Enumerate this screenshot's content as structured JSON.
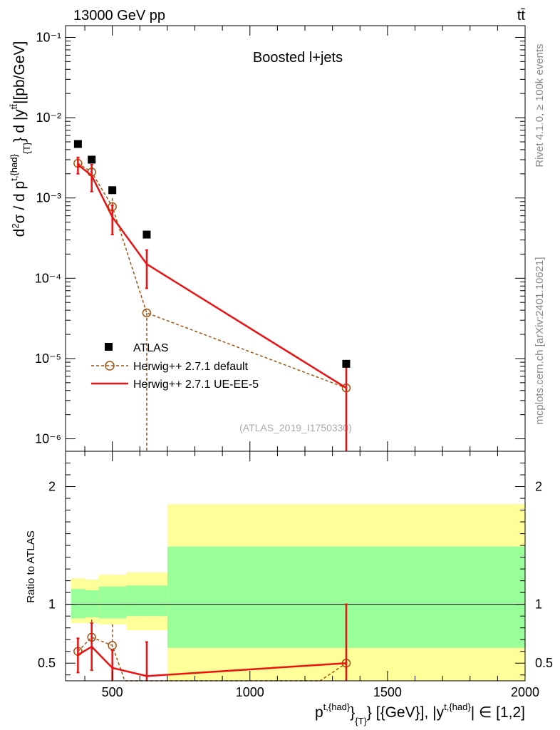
{
  "header": {
    "energy_label": "13000 GeV pp",
    "process_label": "tt̄"
  },
  "side_labels": {
    "rivet": "Rivet 4.1.0, ≥ 100k events",
    "mcplots": "mcplots.cern.ch [arXiv:2401.10621]"
  },
  "colors": {
    "atlas": "#000000",
    "herwig_default": "#a0520e",
    "herwig_ueee5": "#ee1111",
    "band_outer": "#ffff99",
    "band_inner": "#99ff99"
  },
  "chart_data": [
    {
      "type": "line",
      "title": "Boosted l+jets",
      "ylabel": "d²σ / d p_T^{t,had} d |y^{tt̄}| [pb/GeV]",
      "yscale": "log",
      "xlim": [
        330,
        2000
      ],
      "ylim": [
        7e-07,
        0.14
      ],
      "y_tick_labels": [
        "10⁻⁶",
        "10⁻⁵",
        "10⁻⁴",
        "10⁻³",
        "10⁻²",
        "10⁻¹"
      ],
      "watermark": "(ATLAS_2019_I1750330)",
      "legend": [
        "ATLAS",
        "Herwig++ 2.7.1 default",
        "Herwig++ 2.7.1 UE-EE-5"
      ],
      "series": [
        {
          "name": "ATLAS",
          "style": "markers",
          "x": [
            375,
            425,
            500,
            625,
            1350
          ],
          "y": [
            0.0047,
            0.003,
            0.00125,
            0.00035,
            8.6e-06
          ]
        },
        {
          "name": "Herwig++ 2.7.1 default",
          "style": "dashed-open-circles",
          "x": [
            375,
            425,
            500,
            625,
            1350
          ],
          "y": [
            0.0027,
            0.0021,
            0.00078,
            3.7e-05,
            4.3e-06
          ],
          "yerr_low": [
            0.0005,
            0.0005,
            0.00022,
            3.7e-05,
            0
          ],
          "yerr_high": [
            0.0005,
            0.0005,
            0.00022,
            0,
            0
          ]
        },
        {
          "name": "Herwig++ 2.7.1 UE-EE-5",
          "style": "solid-line",
          "x": [
            375,
            425,
            500,
            625,
            1350
          ],
          "y": [
            0.0026,
            0.0019,
            0.00058,
            0.00015,
            4.3e-06
          ],
          "yerr_low": [
            0.0006,
            0.0007,
            0.00023,
            7.5e-05,
            4.3e-06
          ],
          "yerr_high": [
            0.0006,
            0.0007,
            0.00023,
            7.5e-05,
            4.3e-06
          ]
        }
      ]
    },
    {
      "type": "line",
      "title": "",
      "xlabel": "p_T^{t,{had}} [{GeV}], |y^{t,{had}}| ∈ [1,2]",
      "ylabel": "Ratio to ATLAS",
      "xlim": [
        330,
        2000
      ],
      "ylim": [
        0.35,
        2.3
      ],
      "x_ticks": [
        500,
        1000,
        1500,
        2000
      ],
      "y_ticks": [
        0.5,
        1,
        2
      ],
      "reference_line": 1,
      "bands": [
        {
          "x0": 350,
          "x1": 400,
          "outer": [
            0.84,
            1.22
          ],
          "inner": [
            0.88,
            1.13
          ]
        },
        {
          "x0": 400,
          "x1": 450,
          "outer": [
            0.84,
            1.21
          ],
          "inner": [
            0.89,
            1.12
          ]
        },
        {
          "x0": 450,
          "x1": 550,
          "outer": [
            0.83,
            1.25
          ],
          "inner": [
            0.88,
            1.15
          ]
        },
        {
          "x0": 550,
          "x1": 700,
          "outer": [
            0.78,
            1.27
          ],
          "inner": [
            0.9,
            1.16
          ]
        },
        {
          "x0": 700,
          "x1": 2000,
          "outer": [
            0.0,
            1.85
          ],
          "inner": [
            0.63,
            1.49
          ]
        }
      ],
      "series": [
        {
          "name": "Herwig++ 2.7.1 default",
          "x": [
            375,
            425,
            500,
            545,
            1255,
            1350
          ],
          "y": [
            0.6,
            0.72,
            0.65,
            0.35,
            0.35,
            0.5
          ],
          "markers_at": [
            0,
            1,
            2,
            5
          ],
          "yerr_low": [
            0.12,
            0.15,
            0.25,
            0,
            0,
            0
          ],
          "yerr_high": [
            0.12,
            0.15,
            0.18,
            0,
            0,
            0
          ]
        },
        {
          "name": "Herwig++ 2.7.1 UE-EE-5",
          "x": [
            375,
            425,
            500,
            625,
            1350
          ],
          "y": [
            0.57,
            0.64,
            0.46,
            0.39,
            0.5
          ],
          "yerr_low": [
            0.15,
            0.2,
            0.15,
            0.2,
            0.5
          ],
          "yerr_high": [
            0.14,
            0.2,
            0.15,
            0.29,
            0.5
          ]
        }
      ]
    }
  ]
}
